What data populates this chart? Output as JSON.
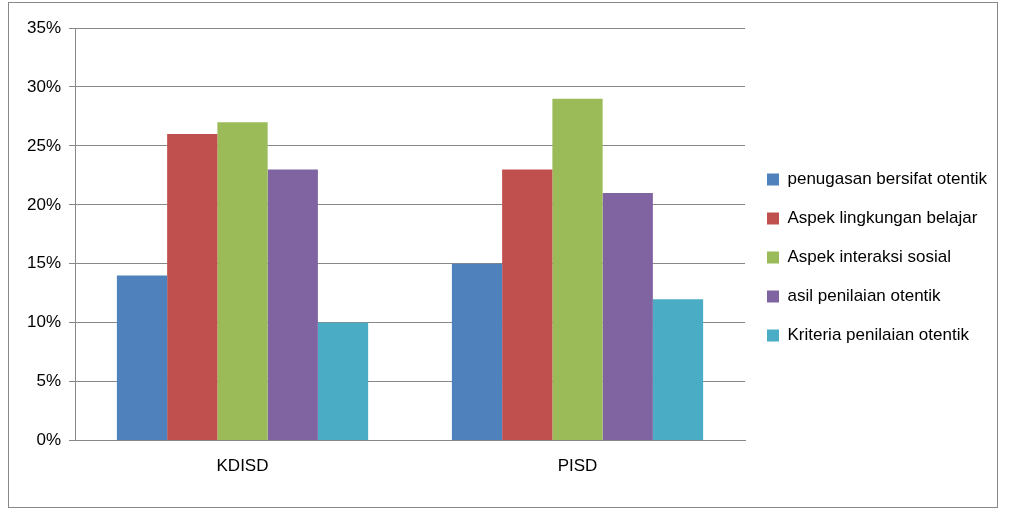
{
  "chart_data": {
    "type": "bar",
    "categories": [
      "KDISD",
      "PISD"
    ],
    "series": [
      {
        "name": "penugasan bersifat otentik",
        "color": "#4f81bd",
        "values": [
          14,
          15
        ]
      },
      {
        "name": "Aspek lingkungan belajar",
        "color": "#c0504d",
        "values": [
          26,
          23
        ]
      },
      {
        "name": "Aspek interaksi sosial",
        "color": "#9bbb59",
        "values": [
          27,
          29
        ]
      },
      {
        "name": "asil penilaian otentik",
        "color": "#8064a2",
        "values": [
          23,
          21
        ]
      },
      {
        "name": "Kriteria penilaian otentik",
        "color": "#4bacc6",
        "values": [
          10,
          12
        ]
      }
    ],
    "ylim": [
      0,
      35
    ],
    "yticks": [
      {
        "value": 0,
        "label": "0%"
      },
      {
        "value": 5,
        "label": "5%"
      },
      {
        "value": 10,
        "label": "10%"
      },
      {
        "value": 15,
        "label": "15%"
      },
      {
        "value": 20,
        "label": "20%"
      },
      {
        "value": 25,
        "label": "25%"
      },
      {
        "value": 30,
        "label": "30%"
      },
      {
        "value": 35,
        "label": "35%"
      }
    ],
    "grid": "y",
    "legend": "right"
  }
}
